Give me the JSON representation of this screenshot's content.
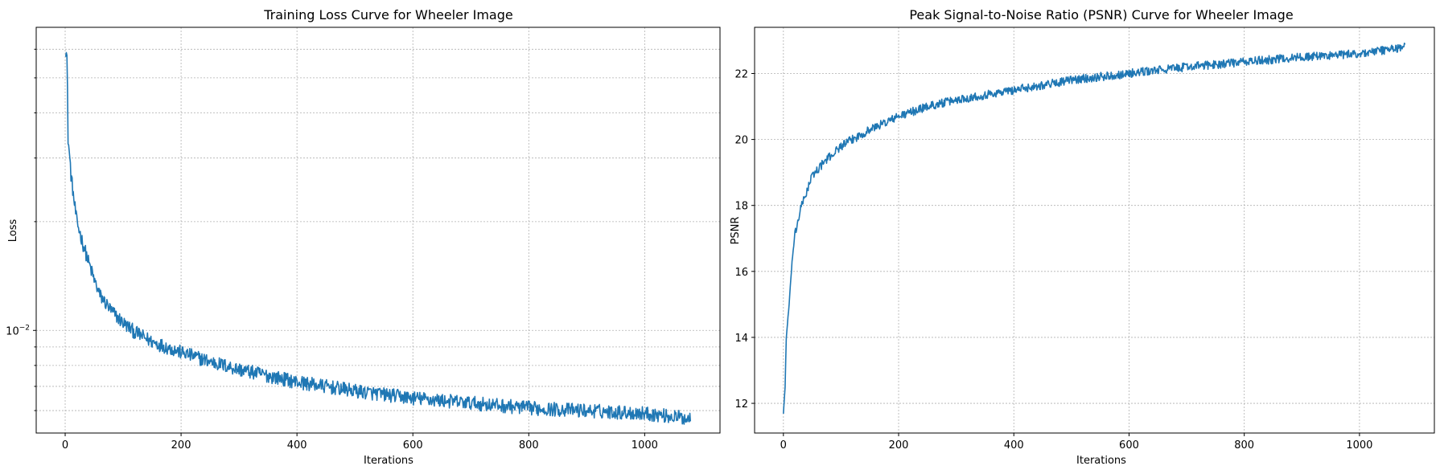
{
  "colors": {
    "line": "#1f77b4",
    "grid": "#b0b0b0"
  },
  "chart_data": [
    {
      "type": "line",
      "title": "Training Loss Curve for Wheeler Image",
      "xlabel": "Iterations",
      "ylabel": "Loss",
      "yscale": "log",
      "grid": true,
      "xlim": [
        -50,
        1130
      ],
      "ylim": [
        0.0052,
        0.069
      ],
      "xticks": [
        0,
        200,
        400,
        600,
        800,
        1000
      ],
      "yticks_major": [
        {
          "value": 0.01,
          "label": "10",
          "exp": "−2"
        }
      ],
      "yticks_minor": [
        0.006,
        0.007,
        0.008,
        0.009,
        0.02,
        0.03,
        0.04,
        0.05,
        0.06
      ],
      "series": [
        {
          "n": 1080,
          "x": [
            1,
            3,
            5,
            10,
            15,
            20,
            30,
            40,
            50,
            60,
            80,
            100,
            120,
            150,
            200,
            250,
            300,
            350,
            400,
            500,
            600,
            700,
            800,
            900,
            1000,
            1079
          ],
          "values": [
            0.06,
            0.057,
            0.034,
            0.027,
            0.023,
            0.02,
            0.0175,
            0.0155,
            0.0138,
            0.0125,
            0.0113,
            0.0105,
            0.0099,
            0.0093,
            0.0087,
            0.0082,
            0.0078,
            0.0075,
            0.0072,
            0.0068,
            0.0065,
            0.0063,
            0.0061,
            0.006,
            0.0059,
            0.0057
          ],
          "noise": 0.045
        }
      ]
    },
    {
      "type": "line",
      "title": "Peak Signal-to-Noise Ratio (PSNR) Curve for Wheeler Image",
      "xlabel": "Iterations",
      "ylabel": "PSNR",
      "grid": true,
      "xlim": [
        -50,
        1130
      ],
      "ylim": [
        11.1,
        23.4
      ],
      "xticks": [
        0,
        200,
        400,
        600,
        800,
        1000
      ],
      "yticks": [
        12,
        14,
        16,
        18,
        20,
        22
      ],
      "series": [
        {
          "n": 1080,
          "x": [
            0,
            3,
            5,
            8,
            10,
            15,
            20,
            30,
            40,
            50,
            70,
            100,
            150,
            200,
            250,
            300,
            400,
            500,
            600,
            700,
            800,
            900,
            1000,
            1079
          ],
          "values": [
            11.7,
            12.5,
            14.0,
            14.6,
            15.0,
            16.3,
            17.1,
            17.9,
            18.4,
            18.9,
            19.3,
            19.8,
            20.3,
            20.7,
            21.0,
            21.2,
            21.5,
            21.8,
            22.0,
            22.2,
            22.35,
            22.5,
            22.6,
            22.8
          ],
          "noise": 0.13
        }
      ]
    }
  ]
}
